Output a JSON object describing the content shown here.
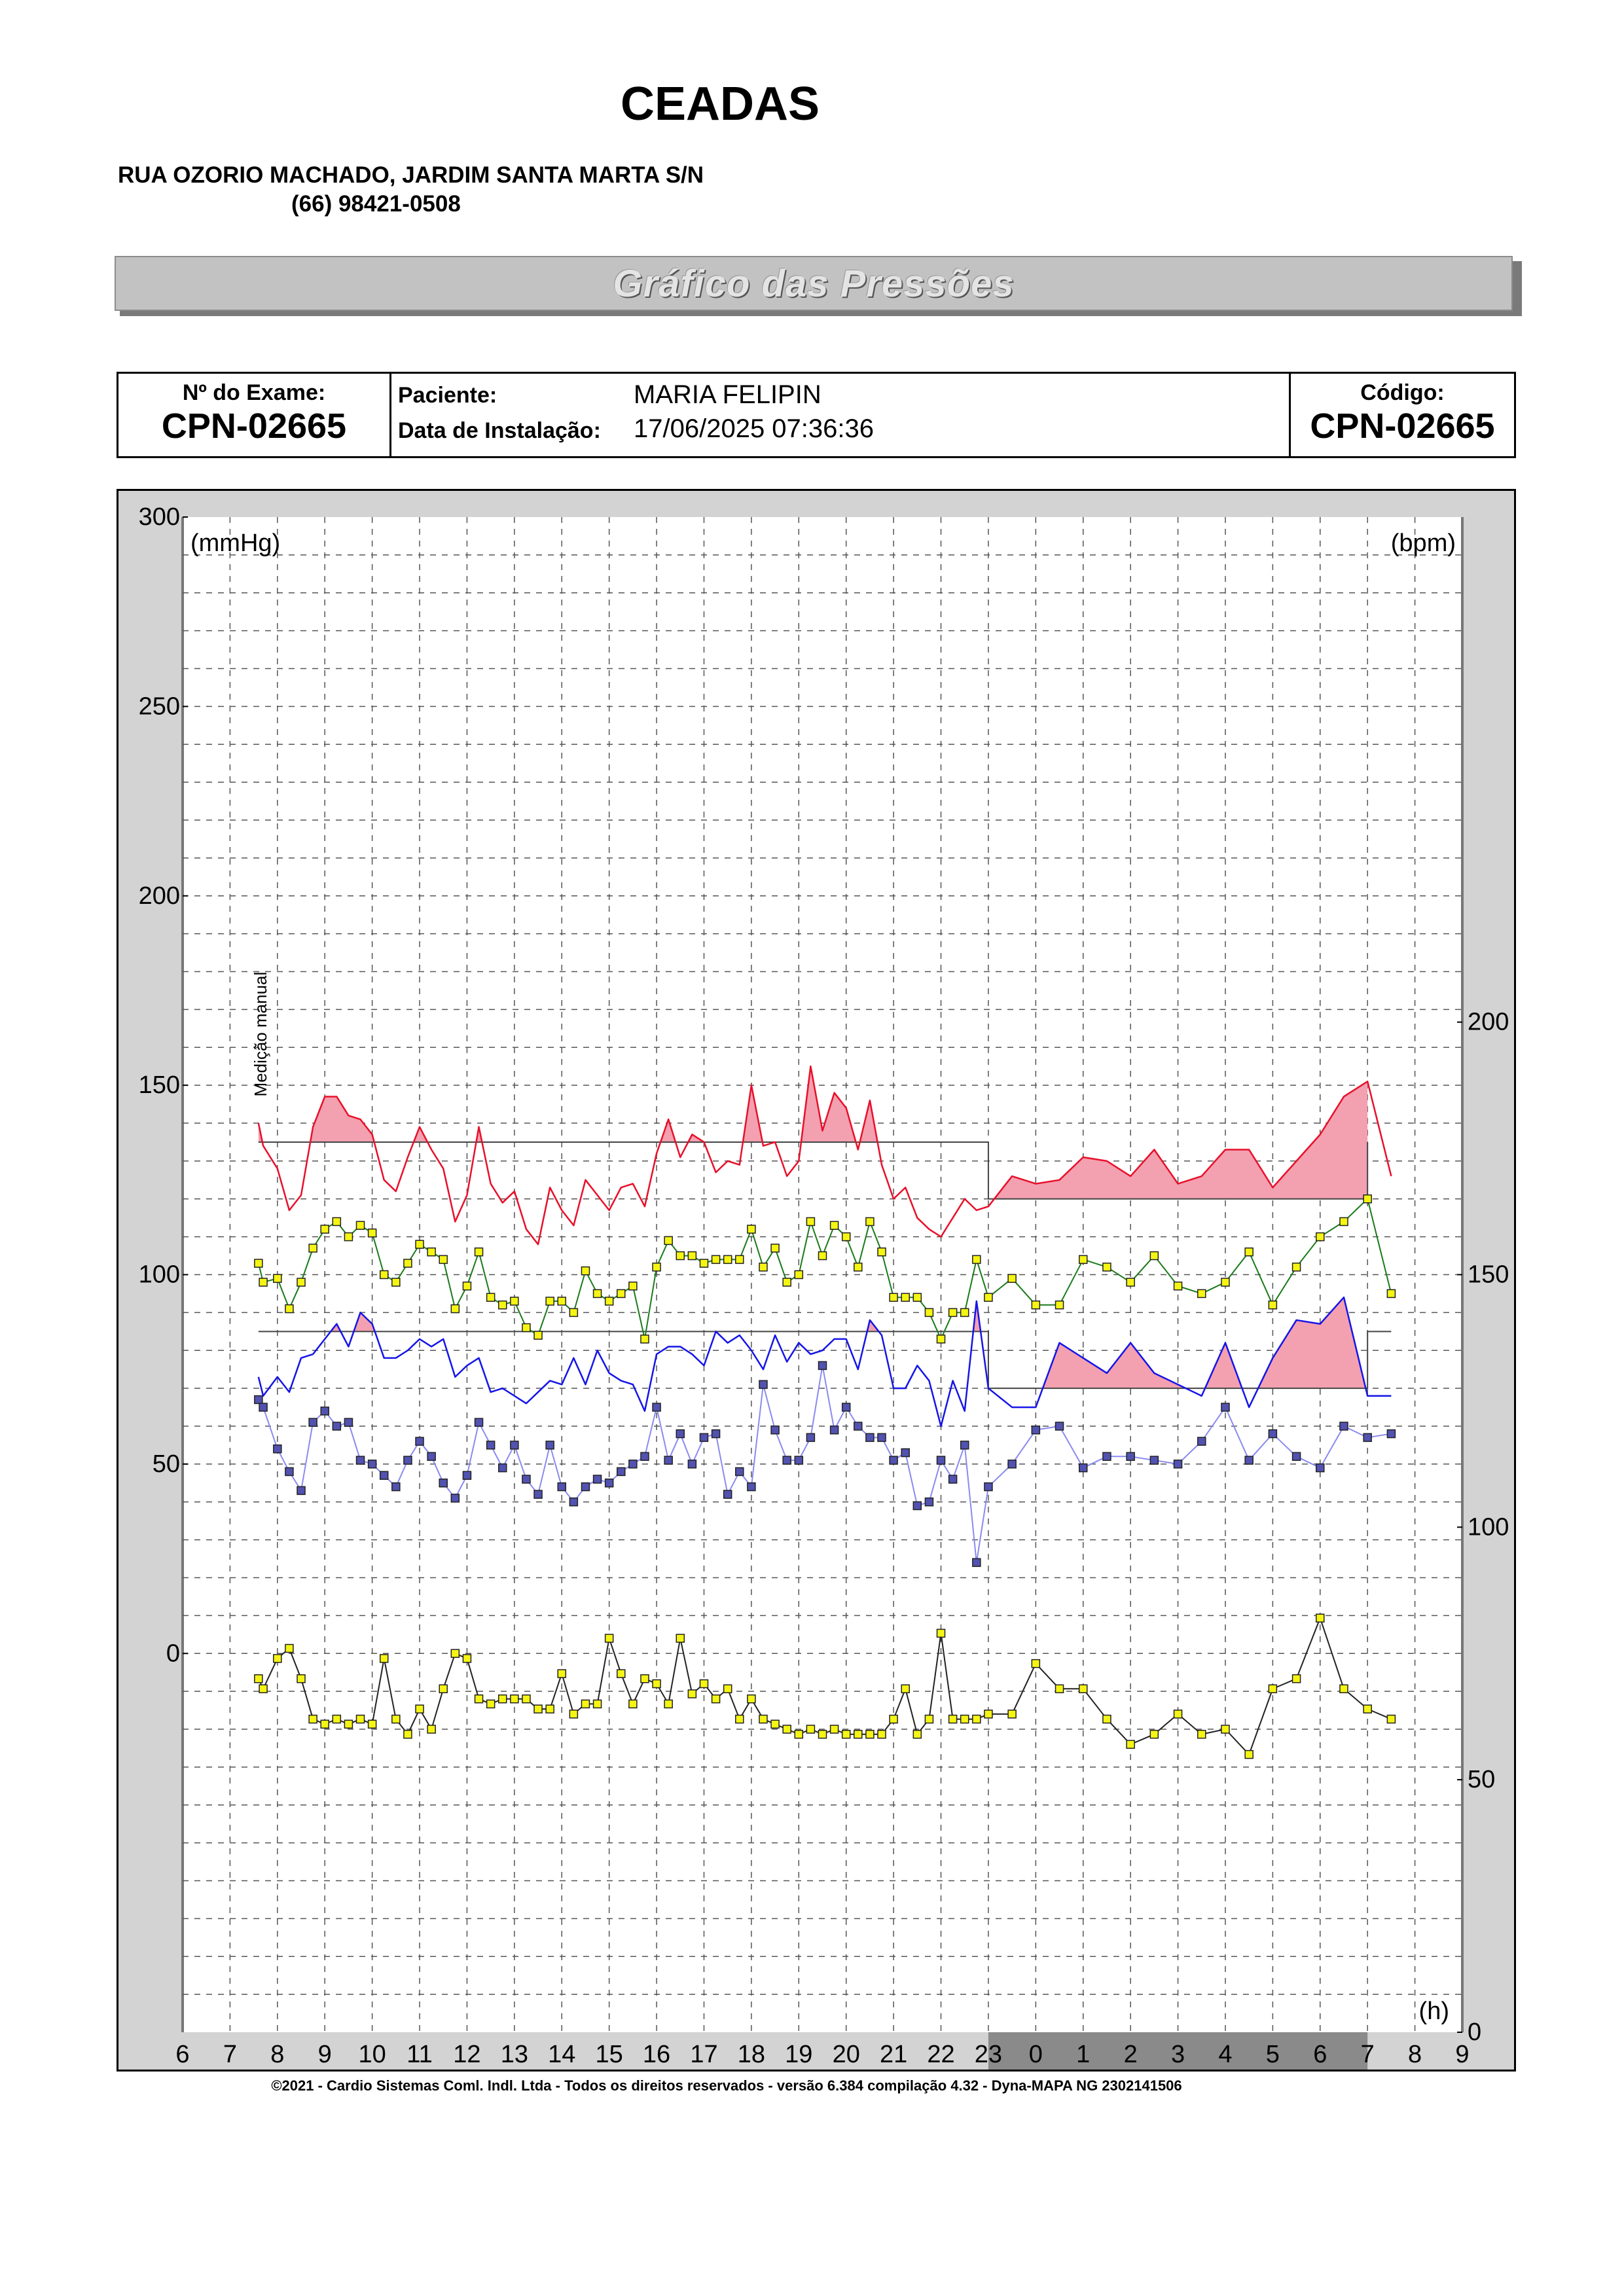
{
  "header": {
    "clinic_name": "CEADAS",
    "address": "RUA OZORIO MACHADO, JARDIM SANTA MARTA S/N",
    "phone": "(66) 98421-0508",
    "banner_title": "Gráfico das Pressões"
  },
  "info": {
    "exam_label": "Nº do Exame:",
    "exam_value": "CPN-02665",
    "patient_label": "Paciente:",
    "patient_value": "MARIA  FELIPIN",
    "install_label": "Data de Instalação:",
    "install_value": "17/06/2025 07:36:36",
    "code_label": "Código:",
    "code_value": "CPN-02665"
  },
  "footer": "©2021 - Cardio Sistemas Coml. Indl. Ltda - Todos os direitos reservados - versão 6.384 compilação 4.32 - Dyna-MAPA NG 2302141506",
  "chart_data": {
    "type": "line",
    "left_axis_label": "(mmHg)",
    "right_axis_label": "(bpm)",
    "x_axis_label": "(h)",
    "annotation": "Medição manual",
    "x_ticks": [
      "6",
      "7",
      "8",
      "9",
      "10",
      "11",
      "12",
      "13",
      "14",
      "15",
      "16",
      "17",
      "18",
      "19",
      "20",
      "21",
      "22",
      "23",
      "0",
      "1",
      "2",
      "3",
      "4",
      "5",
      "6",
      "7",
      "8",
      "9"
    ],
    "y_left_ticks": [
      "300",
      "250",
      "200",
      "150",
      "100",
      "50",
      "0"
    ],
    "y_left_values": [
      300,
      250,
      200,
      150,
      100,
      50,
      0
    ],
    "y_right_ticks": [
      "200",
      "150",
      "100",
      "50",
      "0"
    ],
    "y_right_values": [
      200,
      150,
      100,
      50,
      0
    ],
    "x_range": [
      6,
      33
    ],
    "y_left_range": [
      -100,
      300
    ],
    "y_right_range": [
      0,
      300
    ],
    "sleep_period": [
      23,
      31
    ],
    "thresholds": {
      "awake_systolic": 135,
      "awake_diastolic": 85,
      "sleep_systolic": 120,
      "sleep_diastolic": 70,
      "awake_range": [
        7.6,
        23
      ],
      "sleep_range": [
        23,
        31
      ]
    },
    "colors": {
      "systolic": "#e8102a",
      "diastolic": "#1515e8",
      "mean": "#1a7a1a",
      "pulse_pressure": "#8a8af0",
      "heart_rate": "#222222",
      "excess_fill": "#f3a0b0",
      "sleep_band": "#8a8a8a",
      "marker_yellow": "#f5f514",
      "marker_blue": "#5252b0"
    },
    "series": [
      {
        "key": "systolic",
        "axis": "left",
        "x": [
          7.6,
          7.7,
          8.0,
          8.25,
          8.5,
          8.75,
          9.0,
          9.25,
          9.5,
          9.75,
          10.0,
          10.25,
          10.5,
          10.75,
          11.0,
          11.25,
          11.5,
          11.75,
          12.0,
          12.25,
          12.5,
          12.75,
          13.0,
          13.25,
          13.5,
          13.75,
          14.0,
          14.25,
          14.5,
          14.75,
          15.0,
          15.25,
          15.5,
          15.75,
          16.0,
          16.25,
          16.5,
          16.75,
          17.0,
          17.25,
          17.5,
          17.75,
          18.0,
          18.25,
          18.5,
          18.75,
          19.0,
          19.25,
          19.5,
          19.75,
          20.0,
          20.25,
          20.5,
          20.75,
          21.0,
          21.25,
          21.5,
          21.75,
          22.0,
          22.25,
          22.5,
          22.75,
          23.0,
          23.5,
          24.0,
          24.5,
          25.0,
          25.5,
          26.0,
          26.5,
          27.0,
          27.5,
          28.0,
          28.5,
          29.0,
          29.5,
          30.0,
          30.5,
          31.0,
          31.5
        ],
        "values": [
          140,
          134,
          128,
          117,
          121,
          139,
          147,
          147,
          142,
          141,
          137,
          125,
          122,
          131,
          139,
          133,
          128,
          114,
          121,
          139,
          124,
          119,
          122,
          112,
          108,
          123,
          117,
          113,
          125,
          121,
          117,
          123,
          124,
          118,
          132,
          141,
          131,
          137,
          135,
          127,
          130,
          129,
          150,
          134,
          135,
          126,
          130,
          155,
          138,
          148,
          144,
          133,
          146,
          129,
          120,
          123,
          115,
          112,
          110,
          115,
          120,
          117,
          118,
          126,
          124,
          125,
          131,
          130,
          126,
          133,
          124,
          126,
          133,
          133,
          123,
          130,
          137,
          147,
          151,
          126
        ]
      },
      {
        "key": "mean",
        "axis": "left",
        "x": [
          7.6,
          7.7,
          8.0,
          8.25,
          8.5,
          8.75,
          9.0,
          9.25,
          9.5,
          9.75,
          10.0,
          10.25,
          10.5,
          10.75,
          11.0,
          11.25,
          11.5,
          11.75,
          12.0,
          12.25,
          12.5,
          12.75,
          13.0,
          13.25,
          13.5,
          13.75,
          14.0,
          14.25,
          14.5,
          14.75,
          15.0,
          15.25,
          15.5,
          15.75,
          16.0,
          16.25,
          16.5,
          16.75,
          17.0,
          17.25,
          17.5,
          17.75,
          18.0,
          18.25,
          18.5,
          18.75,
          19.0,
          19.25,
          19.5,
          19.75,
          20.0,
          20.25,
          20.5,
          20.75,
          21.0,
          21.25,
          21.5,
          21.75,
          22.0,
          22.25,
          22.5,
          22.75,
          23.0,
          23.5,
          24.0,
          24.5,
          25.0,
          25.5,
          26.0,
          26.5,
          27.0,
          27.5,
          28.0,
          28.5,
          29.0,
          29.5,
          30.0,
          30.5,
          31.0,
          31.5
        ],
        "values": [
          103,
          98,
          99,
          91,
          98,
          107,
          112,
          114,
          110,
          113,
          111,
          100,
          98,
          103,
          108,
          106,
          104,
          91,
          97,
          106,
          94,
          92,
          93,
          86,
          84,
          93,
          93,
          90,
          101,
          95,
          93,
          95,
          97,
          83,
          102,
          109,
          105,
          105,
          103,
          104,
          104,
          104,
          112,
          102,
          107,
          98,
          100,
          114,
          105,
          113,
          110,
          102,
          114,
          106,
          94,
          94,
          94,
          90,
          83,
          90,
          90,
          104,
          94,
          99,
          92,
          92,
          104,
          102,
          98,
          105,
          97,
          95,
          98,
          106,
          92,
          102,
          110,
          114,
          120,
          95
        ]
      },
      {
        "key": "diastolic",
        "axis": "left",
        "x": [
          7.6,
          7.7,
          8.0,
          8.25,
          8.5,
          8.75,
          9.0,
          9.25,
          9.5,
          9.75,
          10.0,
          10.25,
          10.5,
          10.75,
          11.0,
          11.25,
          11.5,
          11.75,
          12.0,
          12.25,
          12.5,
          12.75,
          13.0,
          13.25,
          13.5,
          13.75,
          14.0,
          14.25,
          14.5,
          14.75,
          15.0,
          15.25,
          15.5,
          15.75,
          16.0,
          16.25,
          16.5,
          16.75,
          17.0,
          17.25,
          17.5,
          17.75,
          18.0,
          18.25,
          18.5,
          18.75,
          19.0,
          19.25,
          19.5,
          19.75,
          20.0,
          20.25,
          20.5,
          20.75,
          21.0,
          21.25,
          21.5,
          21.75,
          22.0,
          22.25,
          22.5,
          22.75,
          23.0,
          23.5,
          24.0,
          24.5,
          25.0,
          25.5,
          26.0,
          26.5,
          27.0,
          27.5,
          28.0,
          28.5,
          29.0,
          29.5,
          30.0,
          30.5,
          31.0,
          31.5
        ],
        "values": [
          73,
          68,
          73,
          69,
          78,
          79,
          83,
          87,
          81,
          90,
          87,
          78,
          78,
          80,
          83,
          81,
          83,
          73,
          76,
          78,
          69,
          70,
          68,
          66,
          69,
          72,
          71,
          78,
          71,
          80,
          74,
          72,
          71,
          64,
          79,
          81,
          81,
          79,
          76,
          85,
          82,
          84,
          80,
          75,
          84,
          77,
          82,
          79,
          80,
          83,
          83,
          75,
          88,
          84,
          70,
          70,
          76,
          72,
          60,
          72,
          64,
          93,
          70,
          65,
          65,
          82,
          78,
          74,
          82,
          74,
          71,
          68,
          82,
          65,
          78,
          88,
          87,
          94,
          68,
          68
        ]
      },
      {
        "key": "pulse_pressure",
        "axis": "left",
        "x": [
          7.6,
          7.7,
          8.0,
          8.25,
          8.5,
          8.75,
          9.0,
          9.25,
          9.5,
          9.75,
          10.0,
          10.25,
          10.5,
          10.75,
          11.0,
          11.25,
          11.5,
          11.75,
          12.0,
          12.25,
          12.5,
          12.75,
          13.0,
          13.25,
          13.5,
          13.75,
          14.0,
          14.25,
          14.5,
          14.75,
          15.0,
          15.25,
          15.5,
          15.75,
          16.0,
          16.25,
          16.5,
          16.75,
          17.0,
          17.25,
          17.5,
          17.75,
          18.0,
          18.25,
          18.5,
          18.75,
          19.0,
          19.25,
          19.5,
          19.75,
          20.0,
          20.25,
          20.5,
          20.75,
          21.0,
          21.25,
          21.5,
          21.75,
          22.0,
          22.25,
          22.5,
          22.75,
          23.0,
          23.5,
          24.0,
          24.5,
          25.0,
          25.5,
          26.0,
          26.5,
          27.0,
          27.5,
          28.0,
          28.5,
          29.0,
          29.5,
          30.0,
          30.5,
          31.0,
          31.5
        ],
        "values": [
          67,
          65,
          54,
          48,
          43,
          61,
          64,
          60,
          61,
          51,
          50,
          47,
          44,
          51,
          56,
          52,
          45,
          41,
          47,
          61,
          55,
          49,
          55,
          46,
          42,
          55,
          44,
          40,
          44,
          46,
          45,
          48,
          50,
          52,
          65,
          51,
          58,
          50,
          57,
          58,
          42,
          48,
          44,
          71,
          59,
          51,
          51,
          57,
          76,
          59,
          65,
          60,
          57,
          57,
          51,
          53,
          39,
          40,
          51,
          46,
          55,
          24,
          44,
          50,
          59,
          60,
          49,
          52,
          52,
          51,
          50,
          56,
          65,
          51,
          58,
          52,
          49,
          60,
          57,
          58
        ]
      },
      {
        "key": "heart_rate",
        "axis": "right",
        "x": [
          7.6,
          7.7,
          8.0,
          8.25,
          8.5,
          8.75,
          9.0,
          9.25,
          9.5,
          9.75,
          10.0,
          10.25,
          10.5,
          10.75,
          11.0,
          11.25,
          11.5,
          11.75,
          12.0,
          12.25,
          12.5,
          12.75,
          13.0,
          13.25,
          13.5,
          13.75,
          14.0,
          14.25,
          14.5,
          14.75,
          15.0,
          15.25,
          15.5,
          15.75,
          16.0,
          16.25,
          16.5,
          16.75,
          17.0,
          17.25,
          17.5,
          17.75,
          18.0,
          18.25,
          18.5,
          18.75,
          19.0,
          19.25,
          19.5,
          19.75,
          20.0,
          20.25,
          20.5,
          20.75,
          21.0,
          21.25,
          21.5,
          21.75,
          22.0,
          22.25,
          22.5,
          22.75,
          23.0,
          23.5,
          24.0,
          24.5,
          25.0,
          25.5,
          26.0,
          26.5,
          27.0,
          27.5,
          28.0,
          28.5,
          29.0,
          29.5,
          30.0,
          30.5,
          31.0,
          31.5
        ],
        "values": [
          70,
          68,
          74,
          76,
          70,
          62,
          61,
          62,
          61,
          62,
          61,
          74,
          62,
          59,
          64,
          60,
          68,
          75,
          74,
          66,
          65,
          66,
          66,
          66,
          64,
          64,
          71,
          63,
          65,
          65,
          78,
          71,
          65,
          70,
          69,
          65,
          78,
          67,
          69,
          66,
          68,
          62,
          66,
          62,
          61,
          60,
          59,
          60,
          59,
          60,
          59,
          59,
          59,
          59,
          62,
          68,
          59,
          62,
          79,
          62,
          62,
          62,
          63,
          63,
          73,
          68,
          68,
          62,
          57,
          59,
          63,
          59,
          60,
          55,
          68,
          70,
          82,
          68,
          64,
          62
        ]
      }
    ]
  }
}
